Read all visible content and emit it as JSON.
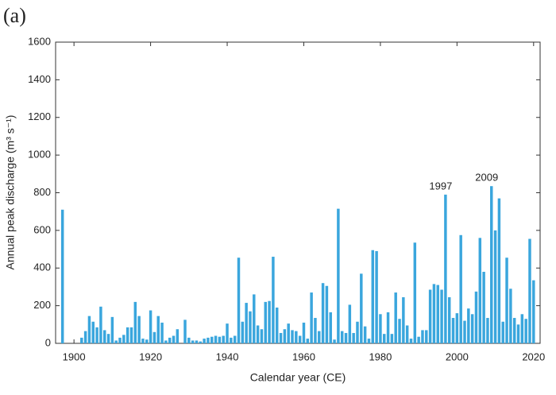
{
  "chart_data": {
    "type": "bar",
    "panel_label": "(a)",
    "x_label": "Calendar year (CE)",
    "y_label": "Annual peak discharge (m³ s⁻¹)",
    "x": [
      1897,
      1902,
      1903,
      1904,
      1905,
      1906,
      1907,
      1908,
      1909,
      1910,
      1911,
      1912,
      1913,
      1914,
      1915,
      1916,
      1917,
      1918,
      1919,
      1920,
      1921,
      1922,
      1923,
      1924,
      1925,
      1926,
      1927,
      1929,
      1930,
      1931,
      1932,
      1933,
      1934,
      1935,
      1936,
      1937,
      1938,
      1939,
      1940,
      1941,
      1942,
      1943,
      1944,
      1945,
      1946,
      1947,
      1948,
      1949,
      1950,
      1951,
      1952,
      1953,
      1954,
      1955,
      1956,
      1957,
      1958,
      1959,
      1960,
      1961,
      1962,
      1963,
      1964,
      1965,
      1966,
      1967,
      1968,
      1969,
      1970,
      1971,
      1972,
      1973,
      1974,
      1975,
      1976,
      1977,
      1978,
      1979,
      1980,
      1981,
      1982,
      1983,
      1984,
      1985,
      1986,
      1987,
      1988,
      1989,
      1990,
      1991,
      1992,
      1993,
      1994,
      1995,
      1996,
      1997,
      1998,
      1999,
      2000,
      2001,
      2002,
      2003,
      2004,
      2005,
      2006,
      2007,
      2008,
      2009,
      2010,
      2011,
      2012,
      2013,
      2014,
      2015,
      2016,
      2017,
      2018,
      2019,
      2020
    ],
    "values": [
      710,
      30,
      65,
      145,
      115,
      85,
      195,
      70,
      50,
      140,
      15,
      30,
      45,
      85,
      85,
      220,
      145,
      25,
      20,
      175,
      60,
      145,
      110,
      15,
      30,
      40,
      75,
      125,
      30,
      15,
      15,
      10,
      25,
      30,
      35,
      40,
      35,
      40,
      105,
      30,
      40,
      455,
      115,
      215,
      170,
      260,
      95,
      75,
      220,
      225,
      460,
      190,
      55,
      75,
      105,
      70,
      65,
      40,
      110,
      25,
      270,
      135,
      65,
      320,
      305,
      165,
      20,
      715,
      65,
      55,
      205,
      55,
      115,
      370,
      90,
      25,
      495,
      490,
      155,
      50,
      165,
      50,
      270,
      130,
      245,
      95,
      25,
      535,
      35,
      70,
      70,
      285,
      315,
      310,
      285,
      790,
      245,
      135,
      160,
      575,
      120,
      185,
      155,
      275,
      560,
      380,
      135,
      835,
      600,
      770,
      115,
      455,
      290,
      135,
      100,
      155,
      130,
      555,
      335
    ],
    "color": "#3aa6dd",
    "annotations": [
      "1997",
      "2009"
    ],
    "xlim": [
      1895.2,
      2021.7
    ],
    "xticks": [
      1900,
      1920,
      1940,
      1960,
      1980,
      2000,
      2020
    ],
    "ylim": [
      0,
      1600
    ],
    "yticks": [
      0,
      200,
      400,
      600,
      800,
      1000,
      1200,
      1400,
      1600
    ],
    "grid": false
  }
}
